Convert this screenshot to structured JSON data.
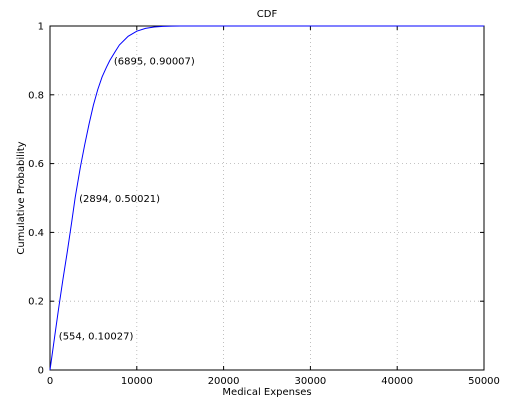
{
  "chart_data": {
    "type": "line",
    "title": "CDF",
    "xlabel": "Medical Expenses",
    "ylabel": "Cumulative Probability",
    "xlim": [
      0,
      50000
    ],
    "ylim": [
      0,
      1
    ],
    "xticks": [
      0,
      10000,
      20000,
      30000,
      40000,
      50000
    ],
    "xtick_labels": [
      "0",
      "10000",
      "20000",
      "30000",
      "40000",
      "50000"
    ],
    "yticks": [
      0,
      0.2,
      0.4,
      0.6,
      0.8,
      1
    ],
    "ytick_labels": [
      "0",
      "0.2",
      "0.4",
      "0.6",
      "0.8",
      "1"
    ],
    "grid": true,
    "line_color": "#0000ff",
    "series": [
      {
        "x": [
          0,
          554,
          1000,
          1500,
          2000,
          2500,
          2894,
          3500,
          4000,
          4500,
          5000,
          5500,
          6000,
          6500,
          6895,
          7500,
          8000,
          9000,
          10000,
          11000,
          12000,
          13000,
          14000,
          15000,
          17000,
          20000,
          30000,
          40000,
          50000
        ],
        "y": [
          0,
          0.10027,
          0.18,
          0.265,
          0.345,
          0.43,
          0.50021,
          0.59,
          0.655,
          0.715,
          0.77,
          0.815,
          0.852,
          0.88,
          0.90007,
          0.925,
          0.945,
          0.97,
          0.985,
          0.993,
          0.997,
          0.999,
          0.9995,
          1.0,
          1.0,
          1.0,
          1.0,
          1.0,
          1.0
        ]
      }
    ],
    "annotations": [
      {
        "x": 554,
        "y": 0.10027,
        "text": "(554, 0.10027)"
      },
      {
        "x": 2894,
        "y": 0.50021,
        "text": "(2894, 0.50021)"
      },
      {
        "x": 6895,
        "y": 0.90007,
        "text": "(6895, 0.90007)"
      }
    ]
  }
}
